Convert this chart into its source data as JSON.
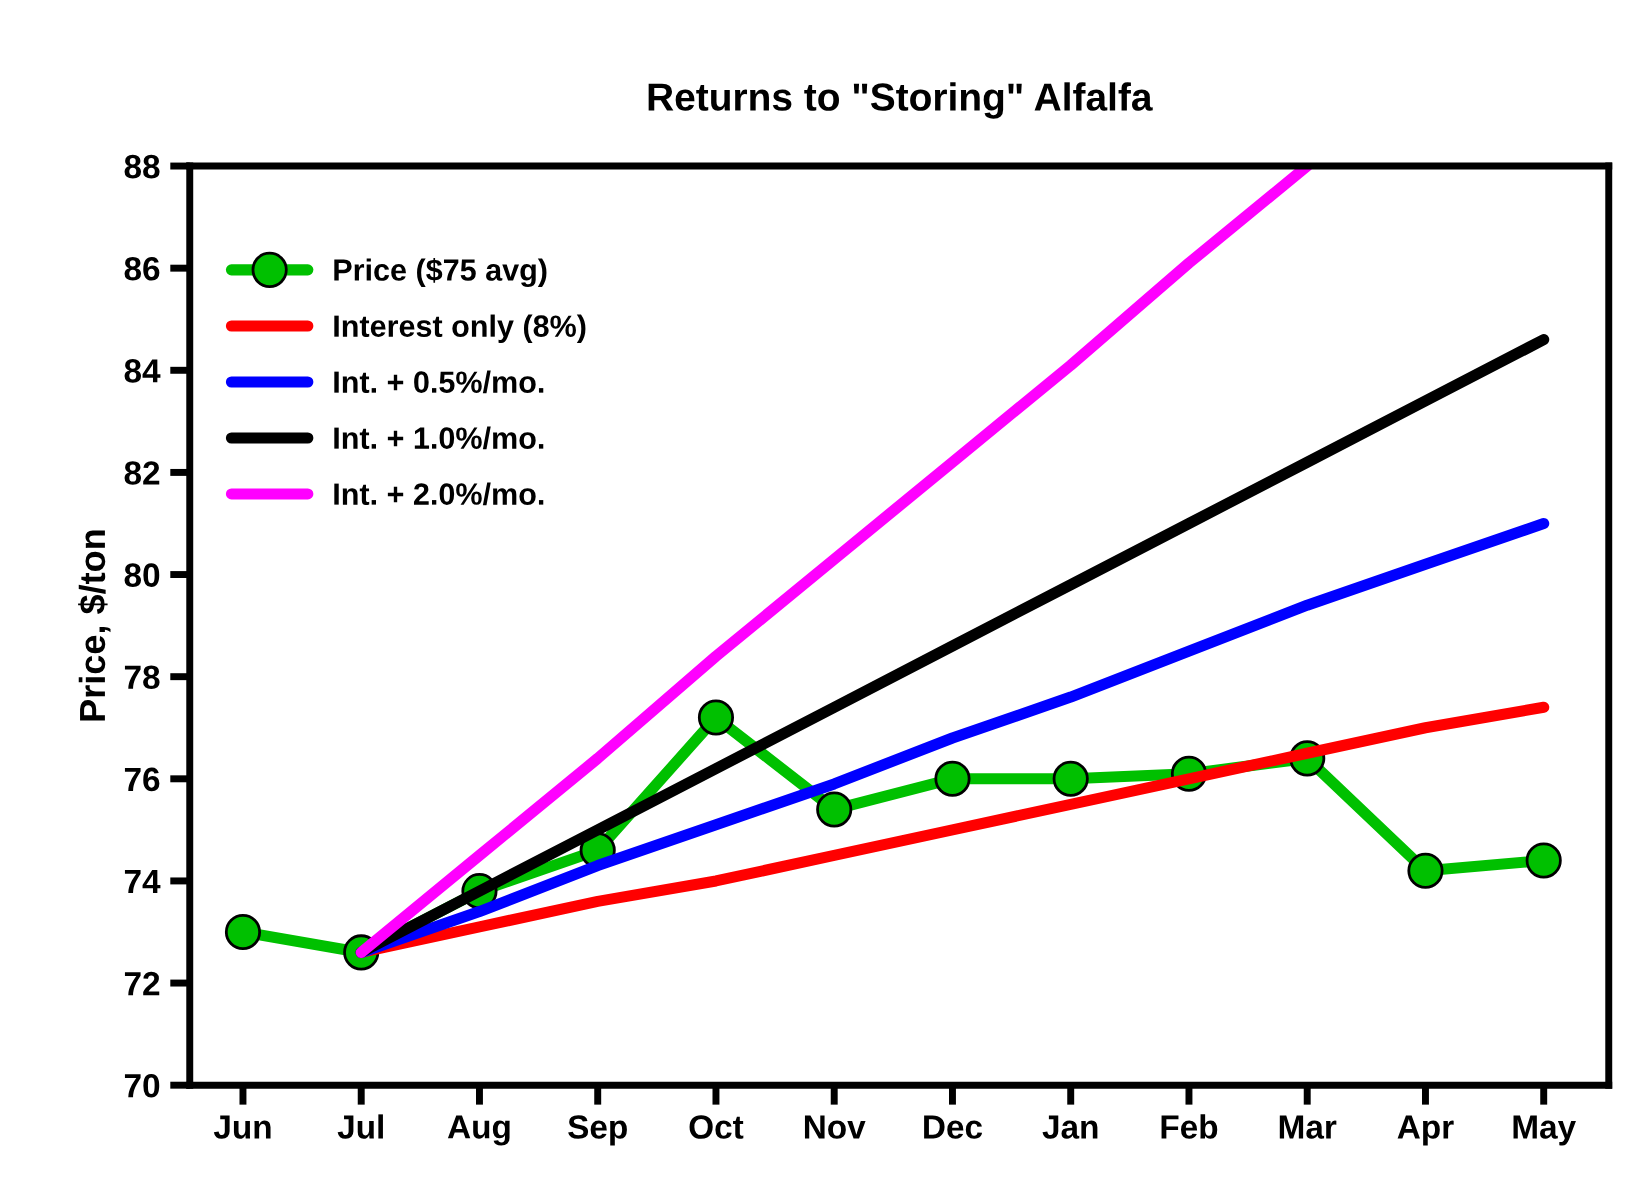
{
  "chart_data": {
    "type": "line",
    "title": "Returns to \"Storing\" Alfalfa",
    "ylabel": "Price, $/ton",
    "categories": [
      "Jun",
      "Jul",
      "Aug",
      "Sep",
      "Oct",
      "Nov",
      "Dec",
      "Jan",
      "Feb",
      "Mar",
      "Apr",
      "May"
    ],
    "ylim": [
      70,
      88
    ],
    "yticks": [
      70,
      72,
      74,
      76,
      78,
      80,
      82,
      84,
      86,
      88
    ],
    "grid": false,
    "legend": "top left",
    "line_style": "solid",
    "series": [
      {
        "name": "Price ($75 avg)",
        "color": "#00c000",
        "marker": "circle",
        "values": [
          73.0,
          72.6,
          73.8,
          74.6,
          77.2,
          75.4,
          76.0,
          76.0,
          76.1,
          76.4,
          74.2,
          74.4
        ]
      },
      {
        "name": "Interest only (8%)",
        "color": "#ff0000",
        "marker": "none",
        "values": [
          null,
          72.6,
          73.1,
          73.6,
          74.0,
          74.5,
          75.0,
          75.5,
          76.0,
          76.5,
          77.0,
          77.4
        ]
      },
      {
        "name": "Int. + 0.5%/mo.",
        "color": "#0000ff",
        "marker": "none",
        "values": [
          null,
          72.6,
          73.4,
          74.3,
          75.1,
          75.9,
          76.8,
          77.6,
          78.5,
          79.4,
          80.2,
          81.0
        ]
      },
      {
        "name": "Int. + 1.0%/mo.",
        "color": "#000000",
        "marker": "none",
        "values": [
          null,
          72.6,
          73.8,
          75.0,
          76.2,
          77.4,
          78.6,
          79.8,
          81.0,
          82.2,
          83.4,
          84.6
        ]
      },
      {
        "name": "Int. + 2.0%/mo.",
        "color": "#ff00ff",
        "marker": "none",
        "values": [
          null,
          72.6,
          74.5,
          76.4,
          78.4,
          80.3,
          82.2,
          84.1,
          86.1,
          88.0,
          null,
          null
        ]
      }
    ]
  }
}
